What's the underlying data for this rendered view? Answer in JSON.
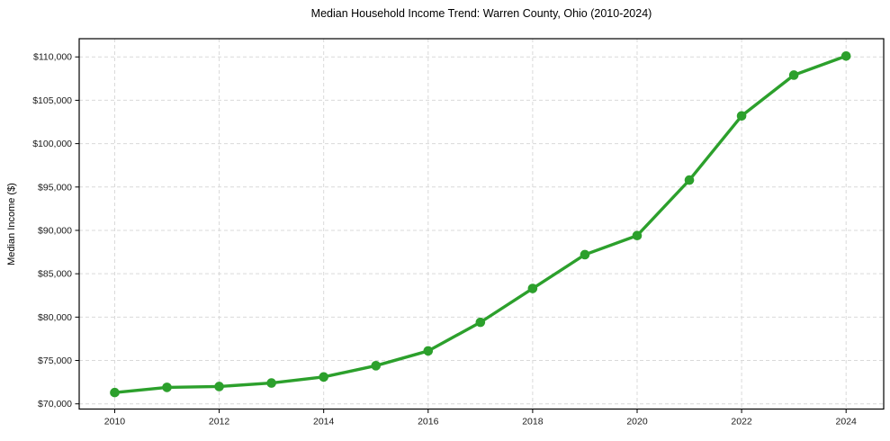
{
  "page": {
    "background_color": "#ffffff"
  },
  "chart_data": {
    "type": "line",
    "title": "Median Household Income Trend: Warren County, Ohio (2010-2024)",
    "xlabel": "",
    "ylabel": "Median Income ($)",
    "x": [
      2010,
      2011,
      2012,
      2013,
      2014,
      2015,
      2016,
      2017,
      2018,
      2019,
      2020,
      2021,
      2022,
      2023,
      2024
    ],
    "values": [
      71300,
      71900,
      72000,
      72400,
      73100,
      74400,
      76100,
      79400,
      83300,
      87200,
      89400,
      95800,
      103200,
      107900,
      110100
    ],
    "series_name": "Median Household Income",
    "xlim": [
      2009.32,
      2024.72
    ],
    "ylim": [
      69400,
      112100
    ],
    "xticks": [
      2010,
      2012,
      2014,
      2016,
      2018,
      2020,
      2022,
      2024
    ],
    "xtick_labels": [
      "2010",
      "2012",
      "2014",
      "2016",
      "2018",
      "2020",
      "2022",
      "2024"
    ],
    "yticks": [
      70000,
      75000,
      80000,
      85000,
      90000,
      95000,
      100000,
      105000,
      110000
    ],
    "ytick_labels": [
      "$70,000",
      "$75,000",
      "$80,000",
      "$85,000",
      "$90,000",
      "$95,000",
      "$100,000",
      "$105,000",
      "$110,000"
    ],
    "grid": true,
    "grid_style": "dashed",
    "legend": "none",
    "line_color": "#2ca02c",
    "marker": "circle",
    "grid_color": "#d9d9d9",
    "spine_color": "#000000",
    "tick_label_color": "#1a1a1a"
  }
}
